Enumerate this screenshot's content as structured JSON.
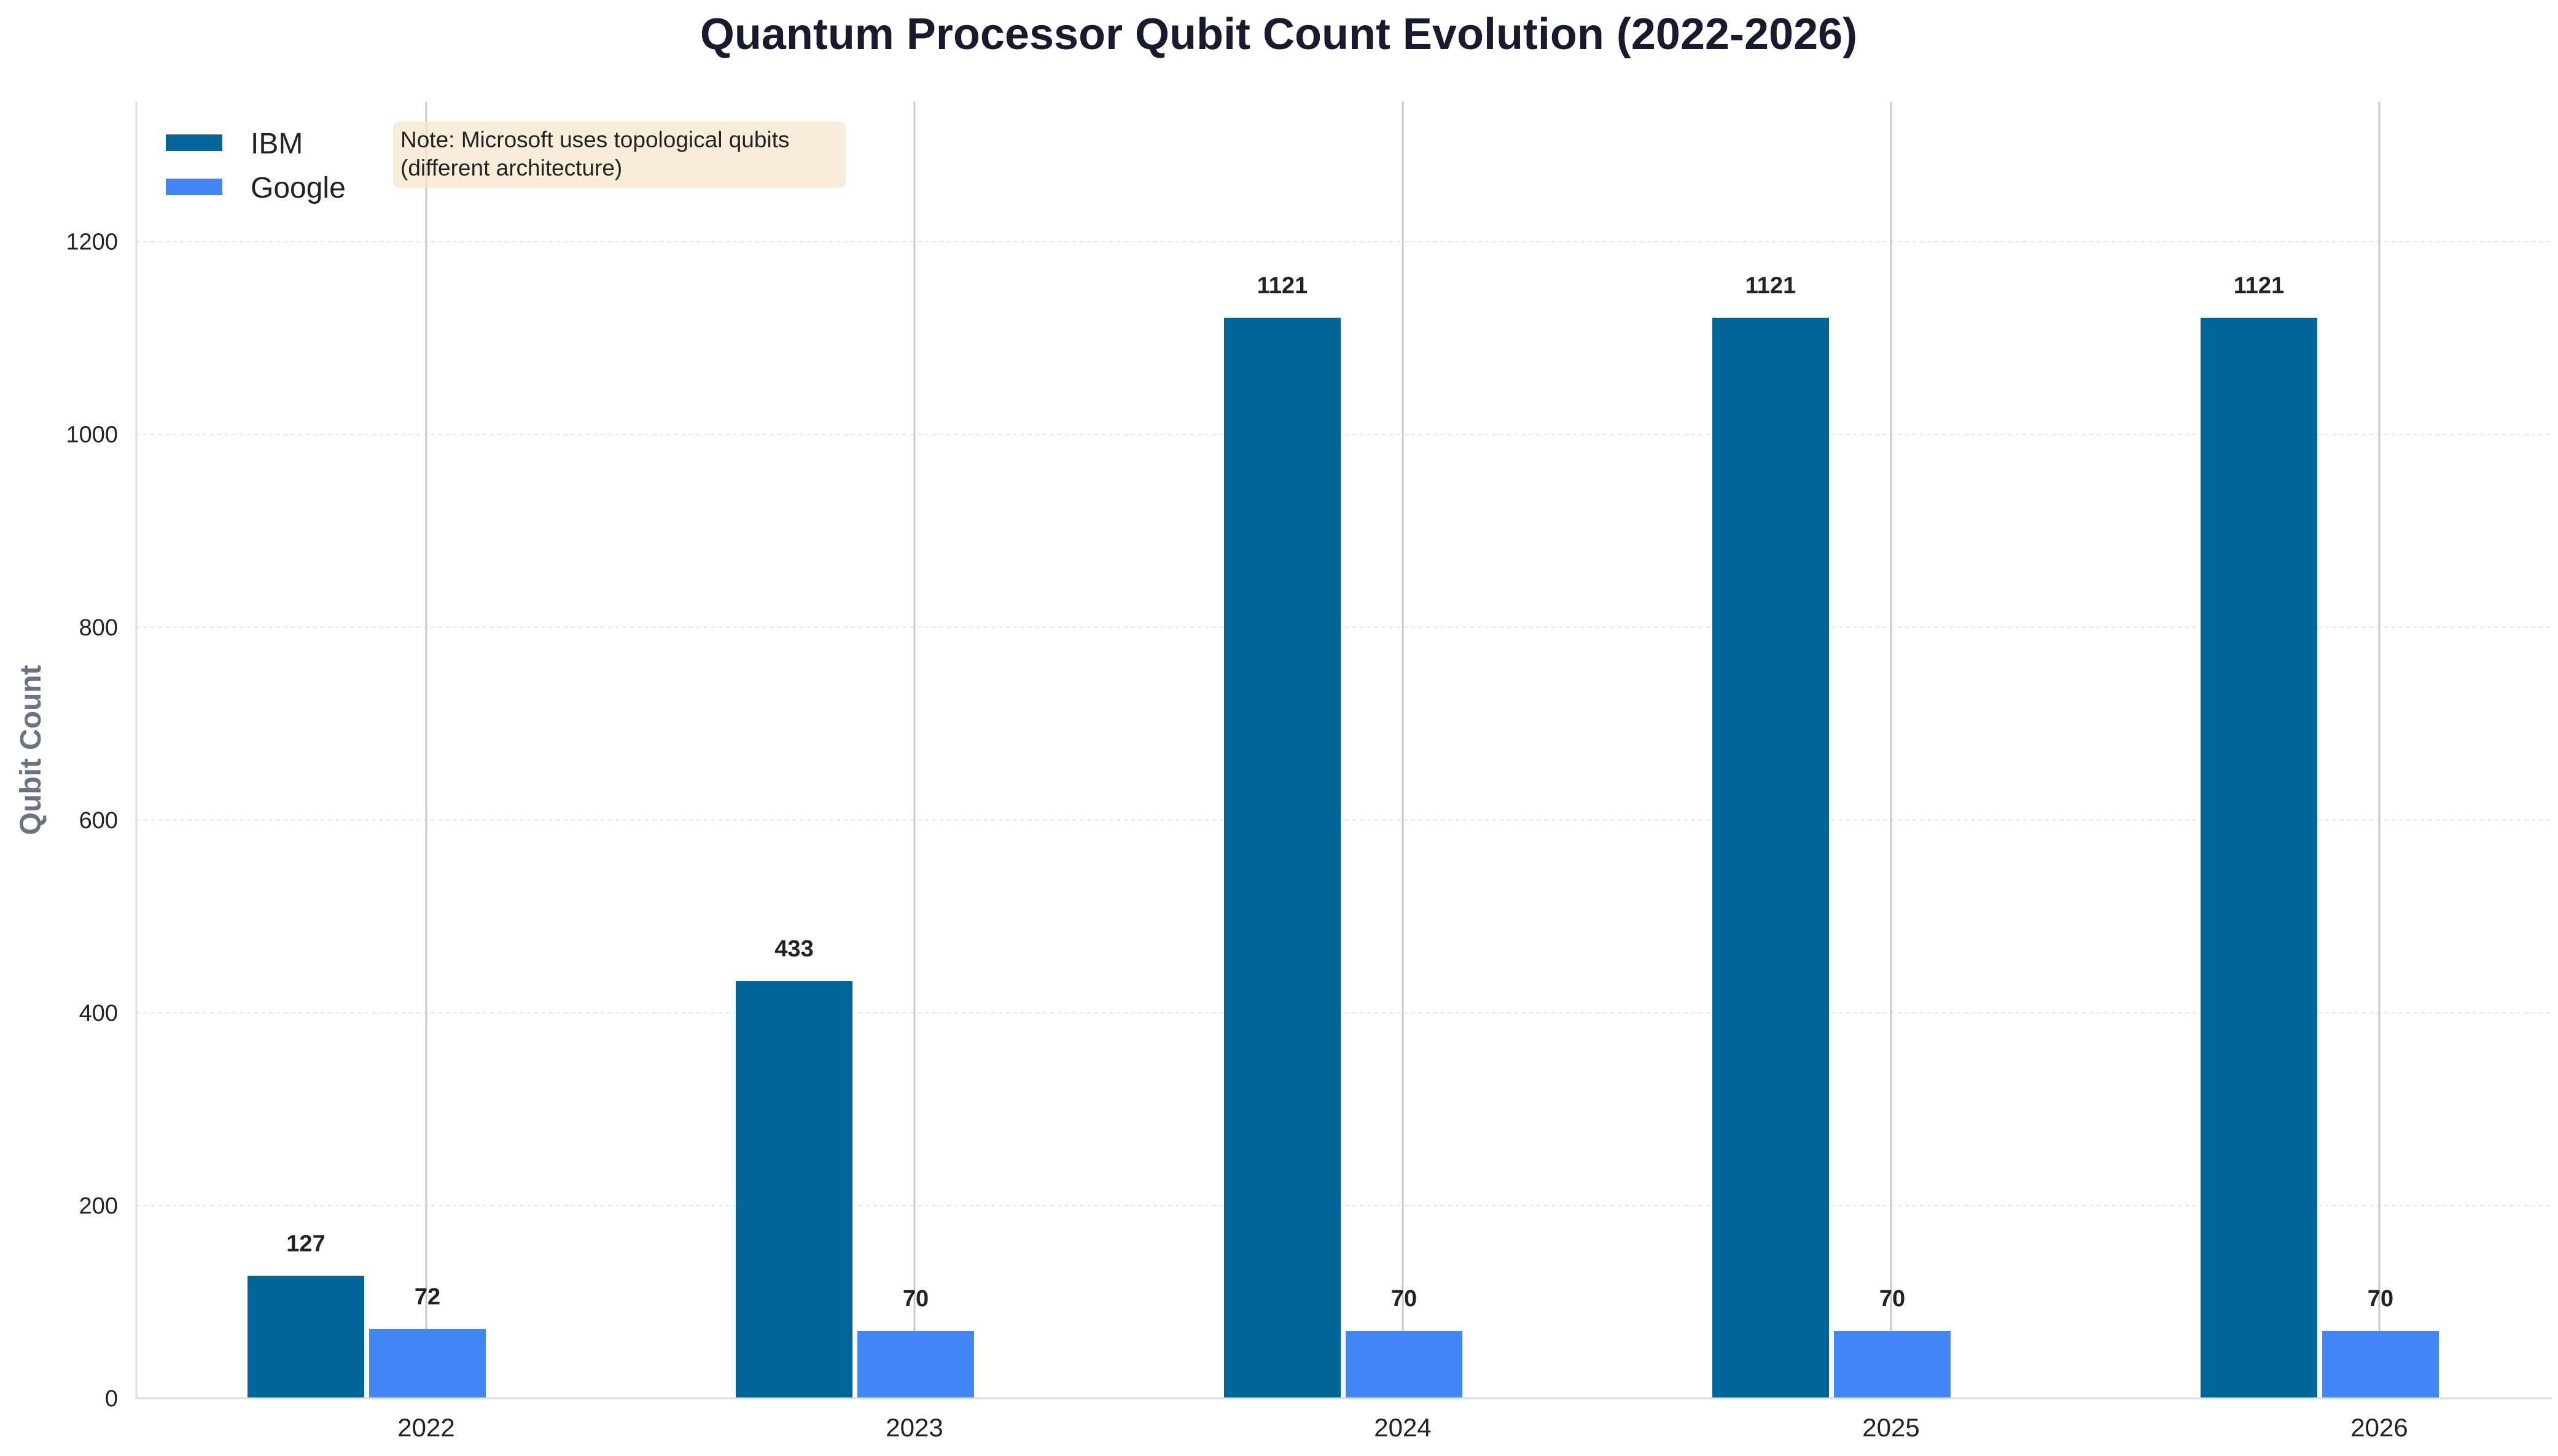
{
  "chart_data": {
    "type": "bar",
    "title": "Quantum Processor Qubit Count Evolution (2022-2026)",
    "xlabel": "",
    "ylabel": "Qubit Count",
    "categories": [
      "2022",
      "2023",
      "2024",
      "2025",
      "2026"
    ],
    "series": [
      {
        "name": "IBM",
        "color": "#006699",
        "values": [
          127,
          433,
          1121,
          1121,
          1121
        ]
      },
      {
        "name": "Google",
        "color": "#4285F4",
        "values": [
          72,
          70,
          70,
          70,
          70
        ]
      }
    ],
    "ylim": [
      0,
      1345
    ],
    "yticks": [
      0,
      200,
      400,
      600,
      800,
      1000,
      1200
    ],
    "grid": {
      "y": true,
      "x": true
    },
    "legend_position": "top-left",
    "annotation": [
      "Note: Microsoft uses topological qubits",
      "(different architecture)"
    ]
  }
}
